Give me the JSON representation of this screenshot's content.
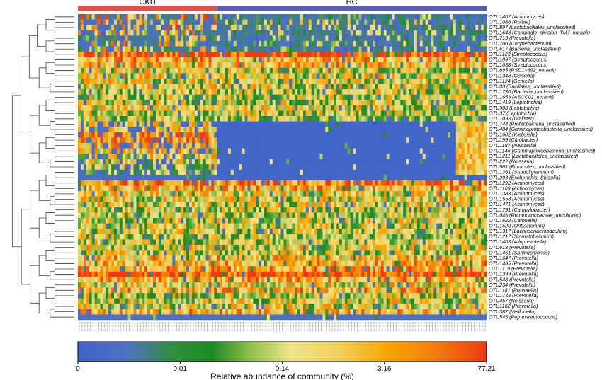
{
  "chart_data": {
    "type": "heatmap",
    "groups": [
      {
        "name": "CKD",
        "color": "#d9534f",
        "samples": 50
      },
      {
        "name": "HC",
        "color": "#5b5fa8",
        "samples": 97
      }
    ],
    "rows": [
      {
        "label": "OTU1467 (Actinomyces)",
        "profile": "low_ckd_mid_hc_low",
        "base": 0.5,
        "ckd": 0.65,
        "hc": 0.12
      },
      {
        "label": "OTU1086 (Rothia)",
        "profile": "mixed",
        "base": 0.35,
        "ckd": 0.55,
        "hc": 0.3
      },
      {
        "label": "OTU897 (Lactobacillales_unclassified)",
        "profile": "mixed",
        "base": 0.3,
        "ckd": 0.6,
        "hc": 0.22
      },
      {
        "label": "OTU1648 (Candidate_division_TM7_norank)",
        "profile": "mixed",
        "base": 0.25,
        "ckd": 0.55,
        "hc": 0.25
      },
      {
        "label": "OTU713 (Prevotella)",
        "profile": "mixed",
        "base": 0.2,
        "ckd": 0.45,
        "hc": 0.18
      },
      {
        "label": "OTU700 (Corynebacterium)",
        "profile": "mixed",
        "base": 0.25,
        "ckd": 0.55,
        "hc": 0.2
      },
      {
        "label": "OTU617 (Bacteria_unclassified)",
        "profile": "mixed",
        "base": 0.2,
        "ckd": 0.5,
        "hc": 0.15
      },
      {
        "label": "OTU1123 (Streptococcus)",
        "profile": "high",
        "base": 0.95,
        "ckd": 0.95,
        "hc": 0.95
      },
      {
        "label": "OTU1097 (Streptococcus)",
        "profile": "high",
        "base": 0.75,
        "ckd": 0.75,
        "hc": 0.72
      },
      {
        "label": "OTU1038 (Streptococcus)",
        "profile": "high",
        "base": 0.7,
        "ckd": 0.7,
        "hc": 0.7
      },
      {
        "label": "OTU895 (PSD1~392_norank)",
        "profile": "mid",
        "base": 0.55,
        "ckd": 0.6,
        "hc": 0.55
      },
      {
        "label": "OTU1348 (Gemella)",
        "profile": "mid",
        "base": 0.6,
        "ckd": 0.62,
        "hc": 0.6
      },
      {
        "label": "OTU1124 (Gemella)",
        "profile": "mid",
        "base": 0.6,
        "ckd": 0.6,
        "hc": 0.6
      },
      {
        "label": "OTU33 (Bacillales_unclassified)",
        "profile": "mid",
        "base": 0.58,
        "ckd": 0.6,
        "hc": 0.58
      },
      {
        "label": "OTU1730 (Bacteria_unclassified)",
        "profile": "mid",
        "base": 0.55,
        "ckd": 0.55,
        "hc": 0.55
      },
      {
        "label": "OTU1653 (ASCC02_norank)",
        "profile": "mid",
        "base": 0.52,
        "ckd": 0.52,
        "hc": 0.52
      },
      {
        "label": "OTU1419 (Leptotrichia)",
        "profile": "mid",
        "base": 0.55,
        "ckd": 0.55,
        "hc": 0.55
      },
      {
        "label": "OTU308 (Leptotrichia)",
        "profile": "mid",
        "base": 0.6,
        "ckd": 0.6,
        "hc": 0.6
      },
      {
        "label": "OTU37 (Leptotrichia)",
        "profile": "mid",
        "base": 0.55,
        "ckd": 0.55,
        "hc": 0.55
      },
      {
        "label": "OTU1093 (Dialister)",
        "profile": "mid",
        "base": 0.5,
        "ckd": 0.5,
        "hc": 0.45
      },
      {
        "label": "OTU744 (Proteobacteria_unclassified)",
        "profile": "ckd_only",
        "base": 0.55,
        "ckd": 0.6,
        "hc": 0.02
      },
      {
        "label": "OTU404 (Gammaproteobacteria_unclassified)",
        "profile": "ckd_only",
        "base": 0.6,
        "ckd": 0.65,
        "hc": 0.02
      },
      {
        "label": "OTU1602 (Klebsiella)",
        "profile": "ckd_only",
        "base": 0.8,
        "ckd": 0.85,
        "hc": 0.02
      },
      {
        "label": "OTU199 (Citrobacter)",
        "profile": "ckd_only",
        "base": 0.75,
        "ckd": 0.82,
        "hc": 0.02
      },
      {
        "label": "OTU1187 (Neisseria)",
        "profile": "ckd_only",
        "base": 0.6,
        "ckd": 0.7,
        "hc": 0.02
      },
      {
        "label": "OTU1146 (Gammaproteobacteria_unclassified)",
        "profile": "ckd_only",
        "base": 0.55,
        "ckd": 0.65,
        "hc": 0.02
      },
      {
        "label": "OTU1211 (Lactobacillales_unclassified)",
        "profile": "ckd_only",
        "base": 0.5,
        "ckd": 0.6,
        "hc": 0.02
      },
      {
        "label": "OTU222 (Neisseria)",
        "profile": "ckd_only",
        "base": 0.45,
        "ckd": 0.55,
        "hc": 0.02
      },
      {
        "label": "OTU901 (Firmicutes_unclassified)",
        "profile": "ckd_only",
        "base": 0.4,
        "ckd": 0.5,
        "hc": 0.02
      },
      {
        "label": "OTU1361 (Subdoligranulum)",
        "profile": "ckd_only",
        "base": 0.3,
        "ckd": 0.35,
        "hc": 0.02
      },
      {
        "label": "OTU293 (Escherichia−Shigella)",
        "profile": "low",
        "base": 0.05,
        "ckd": 0.08,
        "hc": 0.02
      },
      {
        "label": "OTU1292 (Actinomyces)",
        "profile": "high",
        "base": 0.88,
        "ckd": 0.88,
        "hc": 0.88
      },
      {
        "label": "OTU1169 (Actinomyces)",
        "profile": "high",
        "base": 0.72,
        "ckd": 0.72,
        "hc": 0.72
      },
      {
        "label": "OTU1383 (Actinomyces)",
        "profile": "mid",
        "base": 0.62,
        "ckd": 0.62,
        "hc": 0.62
      },
      {
        "label": "OTU1558 (Actinomyces)",
        "profile": "mid",
        "base": 0.6,
        "ckd": 0.6,
        "hc": 0.6
      },
      {
        "label": "OTU1471 (Actinomyces)",
        "profile": "mid",
        "base": 0.6,
        "ckd": 0.6,
        "hc": 0.6
      },
      {
        "label": "OTU1791 (Campylobacter)",
        "profile": "mid",
        "base": 0.55,
        "ckd": 0.55,
        "hc": 0.55
      },
      {
        "label": "OTU946 (Ruminococcaceae_uncultured)",
        "profile": "mid",
        "base": 0.52,
        "ckd": 0.52,
        "hc": 0.52
      },
      {
        "label": "OTU1622 (Catonella)",
        "profile": "mid",
        "base": 0.55,
        "ckd": 0.55,
        "hc": 0.55
      },
      {
        "label": "OTU1520 (Oribacterium)",
        "profile": "mid",
        "base": 0.55,
        "ckd": 0.55,
        "hc": 0.55
      },
      {
        "label": "OTU1317 (Lachnoanaerobaculum)",
        "profile": "mid",
        "base": 0.55,
        "ckd": 0.55,
        "hc": 0.55
      },
      {
        "label": "OTU1217 (Stomatobaculum)",
        "profile": "mid",
        "base": 0.52,
        "ckd": 0.52,
        "hc": 0.52
      },
      {
        "label": "OTU1403 (Alloprevotella)",
        "profile": "mid",
        "base": 0.55,
        "ckd": 0.55,
        "hc": 0.55
      },
      {
        "label": "OTU618 (Prevotella)",
        "profile": "mid",
        "base": 0.6,
        "ckd": 0.6,
        "hc": 0.6
      },
      {
        "label": "OTU1461 (Sphingomonas)",
        "profile": "mid",
        "base": 0.55,
        "ckd": 0.55,
        "hc": 0.55
      },
      {
        "label": "OTU1647 (Prevotella)",
        "profile": "high",
        "base": 0.7,
        "ckd": 0.7,
        "hc": 0.7
      },
      {
        "label": "OTU1405 (Prevotella)",
        "profile": "high",
        "base": 0.72,
        "ckd": 0.72,
        "hc": 0.72
      },
      {
        "label": "OTU1119 (Prevotella)",
        "profile": "high",
        "base": 0.75,
        "ckd": 0.75,
        "hc": 0.75
      },
      {
        "label": "OTU1399 (Prevotella)",
        "profile": "high",
        "base": 0.95,
        "ckd": 0.95,
        "hc": 0.95
      },
      {
        "label": "OTU548 (Prevotella)",
        "profile": "high",
        "base": 0.72,
        "ckd": 0.72,
        "hc": 0.72
      },
      {
        "label": "OTU234 (Prevotella)",
        "profile": "mid",
        "base": 0.62,
        "ckd": 0.62,
        "hc": 0.62
      },
      {
        "label": "OTU1181 (Prevotella)",
        "profile": "high",
        "base": 0.75,
        "ckd": 0.75,
        "hc": 0.75
      },
      {
        "label": "OTU1733 (Prevotella)",
        "profile": "mid",
        "base": 0.55,
        "ckd": 0.55,
        "hc": 0.55
      },
      {
        "label": "OTU457 (Neisseria)",
        "profile": "mid",
        "base": 0.58,
        "ckd": 0.58,
        "hc": 0.58
      },
      {
        "label": "OTU1162 (Prevotella)",
        "profile": "mid",
        "base": 0.6,
        "ckd": 0.6,
        "hc": 0.6
      },
      {
        "label": "OTU387 (Veillonella)",
        "profile": "high",
        "base": 0.72,
        "ckd": 0.72,
        "hc": 0.72
      },
      {
        "label": "OTU545 (Peptostreptococcus)",
        "profile": "low",
        "base": 0.1,
        "ckd": 0.1,
        "hc": 0.1
      }
    ],
    "colorbar": {
      "label": "Relative abundance of community (%)",
      "ticks": [
        "0",
        "0.01",
        "0.14",
        "3.16",
        "77.21"
      ],
      "colors": [
        "#3f63c9",
        "#1e8a24",
        "#eee48a",
        "#f7a600",
        "#ee3a10"
      ]
    },
    "dendrogram": "hierarchical clustering of rows (left side)"
  },
  "colors": {
    "ckd": "#d9534f",
    "hc": "#5b5fa8",
    "low": "#3f63c9",
    "mid_low": "#1e8a24",
    "mid": "#eee48a",
    "mid_high": "#f7a600",
    "high": "#ee3a10"
  }
}
